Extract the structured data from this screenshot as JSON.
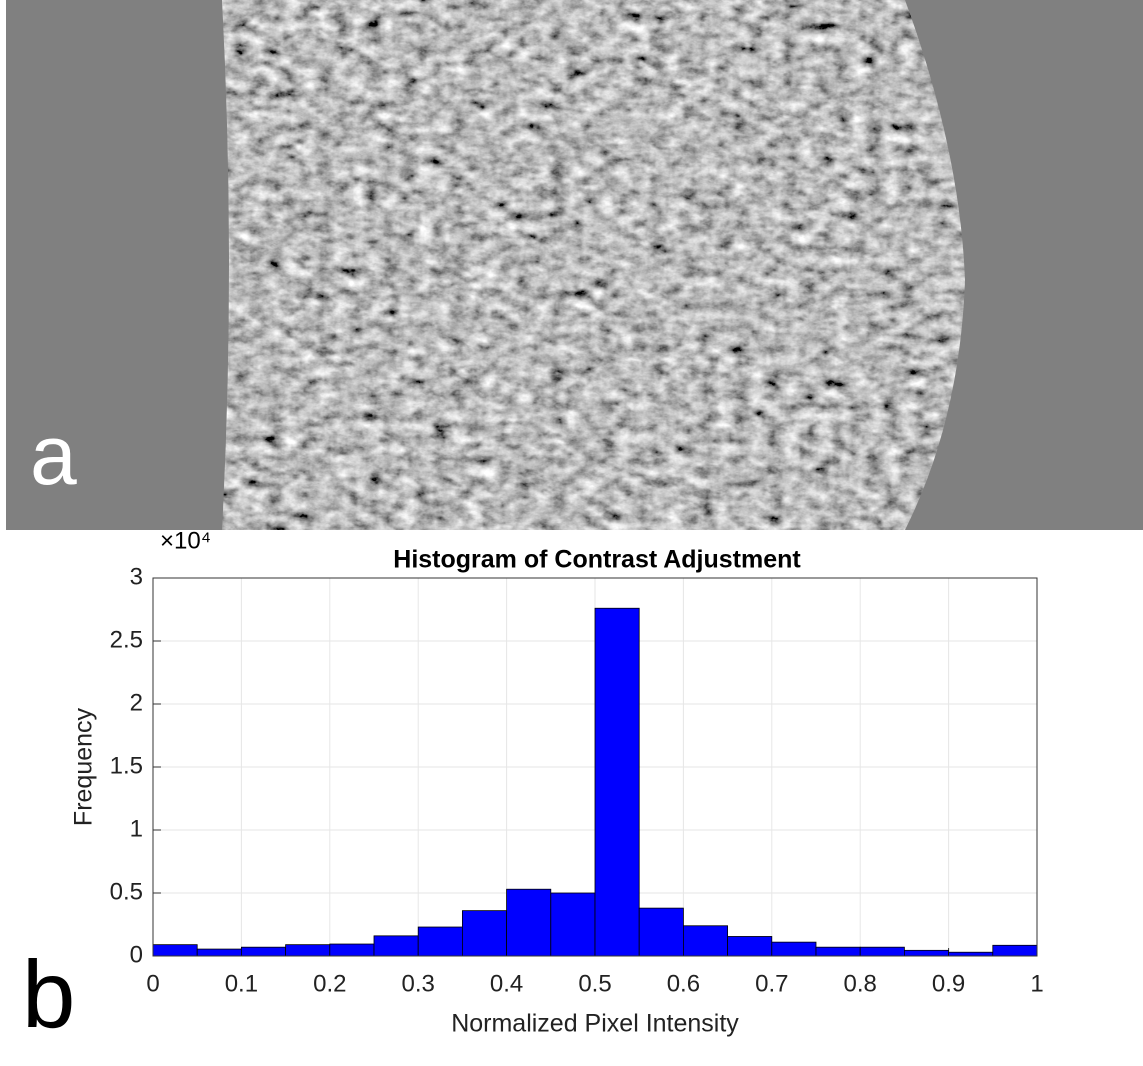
{
  "panel_labels": [
    "a",
    "b"
  ],
  "chart_data": {
    "type": "histogram",
    "title": "Histogram of Contrast Adjustment",
    "x_label": "Normalized Pixel Intensity",
    "y_label": "Frequency",
    "y_exponent_label": "×10⁴",
    "bins": [
      0,
      0.05,
      0.1,
      0.15,
      0.2,
      0.25,
      0.3,
      0.35,
      0.4,
      0.45,
      0.5,
      0.55,
      0.6,
      0.65,
      0.7,
      0.75,
      0.8,
      0.85,
      0.9,
      0.95,
      1
    ],
    "values": [
      0.09,
      0.055,
      0.07,
      0.09,
      0.095,
      0.16,
      0.23,
      0.36,
      0.53,
      0.5,
      2.76,
      0.38,
      0.24,
      0.155,
      0.11,
      0.07,
      0.07,
      0.045,
      0.03,
      0.085
    ],
    "color": "#0000ff",
    "xlim": [
      0,
      1
    ],
    "xticks": [
      0,
      0.1,
      0.2,
      0.3,
      0.4,
      0.5,
      0.6,
      0.7,
      0.8,
      0.9,
      1
    ],
    "ylim": [
      0,
      3
    ],
    "yticks": [
      0,
      0.5,
      1,
      1.5,
      2,
      2.5,
      3
    ],
    "grid": true
  }
}
